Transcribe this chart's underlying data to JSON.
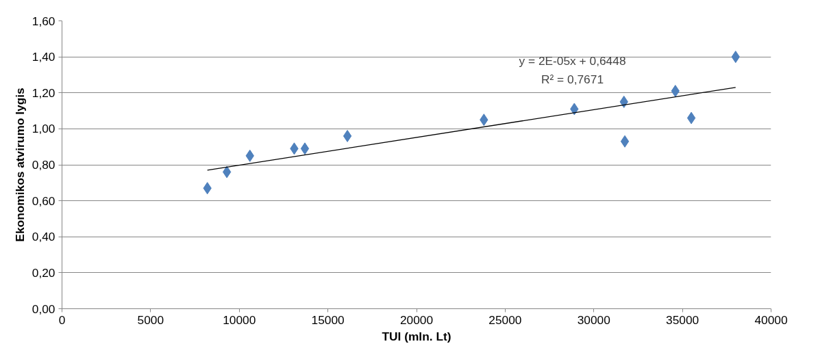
{
  "chart_data": {
    "type": "scatter",
    "xlabel": "TUI (mln. Lt)",
    "ylabel": "Ekonomikos atvirumo lygis",
    "xlim": [
      0,
      40000
    ],
    "xticks": [
      0,
      5000,
      10000,
      15000,
      20000,
      25000,
      30000,
      35000,
      40000
    ],
    "ylim": [
      0,
      1.6
    ],
    "yticks": [
      {
        "value": 0,
        "label": "0,00"
      },
      {
        "value": 0.2,
        "label": "0,20"
      },
      {
        "value": 0.4,
        "label": "0,40"
      },
      {
        "value": 0.6,
        "label": "0,60"
      },
      {
        "value": 0.8,
        "label": "0,80"
      },
      {
        "value": 1.0,
        "label": "1,00"
      },
      {
        "value": 1.2,
        "label": "1,20"
      },
      {
        "value": 1.4,
        "label": "1,40"
      },
      {
        "value": 1.6,
        "label": "1,60"
      }
    ],
    "grid": "y",
    "x": [
      8200,
      9300,
      10600,
      13100,
      13700,
      16100,
      23800,
      28900,
      31700,
      31750,
      34600,
      35500,
      38000
    ],
    "series": [
      {
        "color": "#4f81bd",
        "marker": "diamond",
        "values": [
          0.67,
          0.76,
          0.85,
          0.89,
          0.89,
          0.96,
          1.05,
          1.11,
          1.15,
          0.93,
          1.21,
          1.06,
          1.4
        ]
      },
      {
        "type": "line",
        "marker": "none",
        "color": "#000000",
        "x": [
          8200,
          38000
        ],
        "values": [
          0.77,
          1.23
        ]
      }
    ],
    "annotations": [
      "y = 2E-05x + 0,6448",
      "R² = 0,7671"
    ]
  }
}
